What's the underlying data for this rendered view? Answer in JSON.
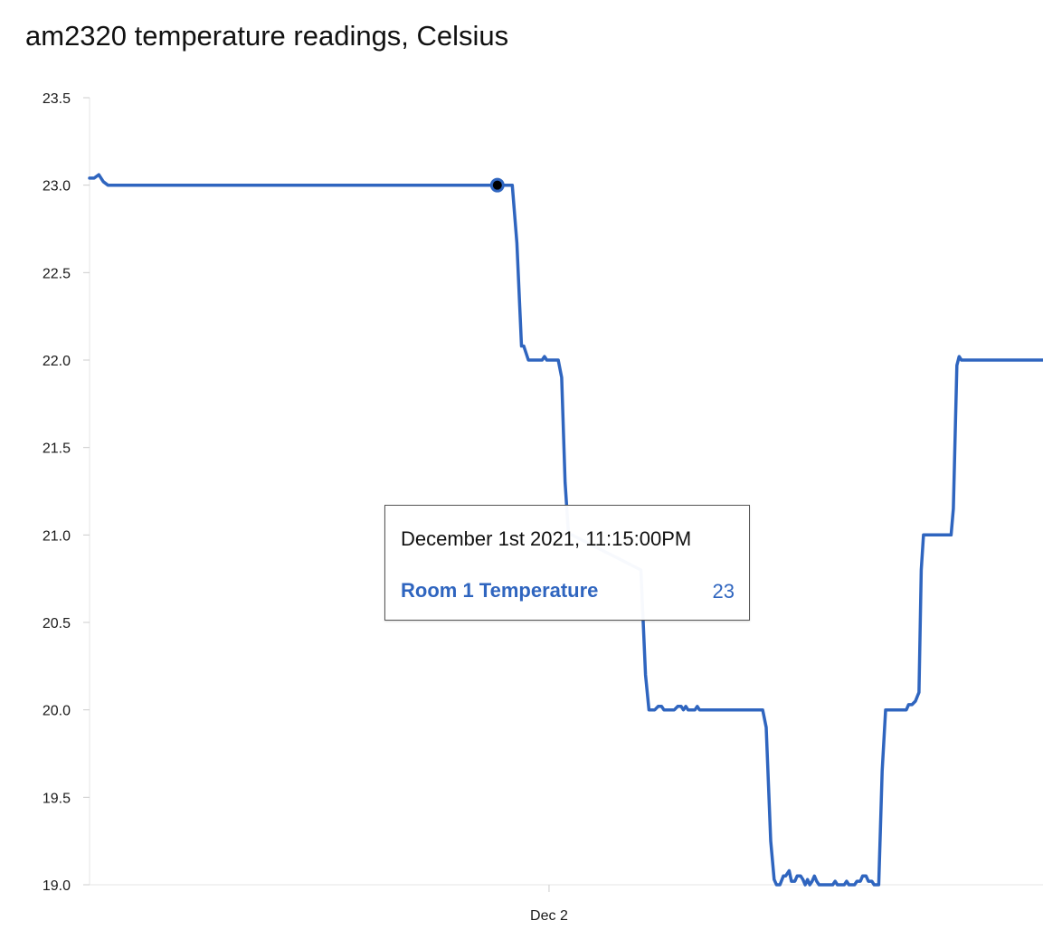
{
  "chart_data": {
    "type": "line",
    "title": "am2320 temperature readings, Celsius",
    "xlabel": "",
    "ylabel": "",
    "ylim": [
      19.0,
      23.5
    ],
    "yticks": [
      "23.5",
      "23.0",
      "22.5",
      "22.0",
      "21.5",
      "21.0",
      "20.5",
      "20.0",
      "19.5",
      "19.0"
    ],
    "xticks": [
      {
        "label": "Dec 2",
        "value": "2021-12-02T00:00:00"
      }
    ],
    "grid": "horizontal baseline only",
    "xlim": [
      "2021-12-01T17:20:00",
      "2021-12-02T07:10:00"
    ],
    "series": [
      {
        "name": "Room 1 Temperature",
        "color": "#2f65bf",
        "points": [
          [
            "2021-12-01T17:20:00",
            23.04
          ],
          [
            "2021-12-01T17:24:00",
            23.04
          ],
          [
            "2021-12-01T17:28:00",
            23.06
          ],
          [
            "2021-12-01T17:32:00",
            23.02
          ],
          [
            "2021-12-01T17:36:00",
            23.0
          ],
          [
            "2021-12-01T21:00:00",
            23.0
          ],
          [
            "2021-12-01T23:15:00",
            23.0
          ],
          [
            "2021-12-01T23:20:00",
            23.0
          ],
          [
            "2021-12-01T23:28:00",
            23.0
          ],
          [
            "2021-12-01T23:32:00",
            22.67
          ],
          [
            "2021-12-01T23:36:00",
            22.08
          ],
          [
            "2021-12-01T23:38:00",
            22.08
          ],
          [
            "2021-12-01T23:42:00",
            22.0
          ],
          [
            "2021-12-01T23:54:00",
            22.0
          ],
          [
            "2021-12-01T23:56:00",
            22.02
          ],
          [
            "2021-12-01T23:58:00",
            22.0
          ],
          [
            "2021-12-02T00:08:00",
            22.0
          ],
          [
            "2021-12-02T00:11:00",
            21.9
          ],
          [
            "2021-12-02T00:14:00",
            21.3
          ],
          [
            "2021-12-02T00:17:00",
            21.0
          ],
          [
            "2021-12-02T00:20:00",
            21.0
          ],
          [
            "2021-12-02T01:20:00",
            20.8
          ],
          [
            "2021-12-02T01:24:00",
            20.2
          ],
          [
            "2021-12-02T01:27:00",
            20.0
          ],
          [
            "2021-12-02T01:32:00",
            20.0
          ],
          [
            "2021-12-02T01:35:00",
            20.02
          ],
          [
            "2021-12-02T01:38:00",
            20.02
          ],
          [
            "2021-12-02T01:40:00",
            20.0
          ],
          [
            "2021-12-02T01:49:00",
            20.0
          ],
          [
            "2021-12-02T01:52:00",
            20.02
          ],
          [
            "2021-12-02T01:55:00",
            20.02
          ],
          [
            "2021-12-02T01:57:00",
            20.0
          ],
          [
            "2021-12-02T01:59:00",
            20.02
          ],
          [
            "2021-12-02T02:01:00",
            20.0
          ],
          [
            "2021-12-02T02:07:00",
            20.0
          ],
          [
            "2021-12-02T02:09:00",
            20.02
          ],
          [
            "2021-12-02T02:11:00",
            20.0
          ],
          [
            "2021-12-02T03:06:00",
            20.0
          ],
          [
            "2021-12-02T03:09:00",
            19.9
          ],
          [
            "2021-12-02T03:13:00",
            19.25
          ],
          [
            "2021-12-02T03:16:00",
            19.03
          ],
          [
            "2021-12-02T03:18:00",
            19.0
          ],
          [
            "2021-12-02T03:21:00",
            19.0
          ],
          [
            "2021-12-02T03:24:00",
            19.05
          ],
          [
            "2021-12-02T03:26:00",
            19.05
          ],
          [
            "2021-12-02T03:29:00",
            19.08
          ],
          [
            "2021-12-02T03:31:00",
            19.02
          ],
          [
            "2021-12-02T03:34:00",
            19.02
          ],
          [
            "2021-12-02T03:36:00",
            19.05
          ],
          [
            "2021-12-02T03:39:00",
            19.05
          ],
          [
            "2021-12-02T03:41:00",
            19.03
          ],
          [
            "2021-12-02T03:43:00",
            19.0
          ],
          [
            "2021-12-02T03:45:00",
            19.03
          ],
          [
            "2021-12-02T03:47:00",
            19.0
          ],
          [
            "2021-12-02T03:49:00",
            19.02
          ],
          [
            "2021-12-02T03:51:00",
            19.05
          ],
          [
            "2021-12-02T03:53:00",
            19.02
          ],
          [
            "2021-12-02T03:55:00",
            19.0
          ],
          [
            "2021-12-02T04:07:00",
            19.0
          ],
          [
            "2021-12-02T04:09:00",
            19.02
          ],
          [
            "2021-12-02T04:11:00",
            19.0
          ],
          [
            "2021-12-02T04:17:00",
            19.0
          ],
          [
            "2021-12-02T04:19:00",
            19.02
          ],
          [
            "2021-12-02T04:21:00",
            19.0
          ],
          [
            "2021-12-02T04:26:00",
            19.0
          ],
          [
            "2021-12-02T04:28:00",
            19.02
          ],
          [
            "2021-12-02T04:31:00",
            19.02
          ],
          [
            "2021-12-02T04:33:00",
            19.05
          ],
          [
            "2021-12-02T04:36:00",
            19.05
          ],
          [
            "2021-12-02T04:38:00",
            19.02
          ],
          [
            "2021-12-02T04:41:00",
            19.02
          ],
          [
            "2021-12-02T04:43:00",
            19.0
          ],
          [
            "2021-12-02T04:47:00",
            19.0
          ],
          [
            "2021-12-02T04:50:00",
            19.65
          ],
          [
            "2021-12-02T04:53:00",
            20.0
          ],
          [
            "2021-12-02T05:11:00",
            20.0
          ],
          [
            "2021-12-02T05:13:00",
            20.03
          ],
          [
            "2021-12-02T05:16:00",
            20.03
          ],
          [
            "2021-12-02T05:19:00",
            20.05
          ],
          [
            "2021-12-02T05:22:00",
            20.1
          ],
          [
            "2021-12-02T05:24:00",
            20.8
          ],
          [
            "2021-12-02T05:26:00",
            21.0
          ],
          [
            "2021-12-02T05:50:00",
            21.0
          ],
          [
            "2021-12-02T05:52:00",
            21.15
          ],
          [
            "2021-12-02T05:55:00",
            21.97
          ],
          [
            "2021-12-02T05:57:00",
            22.02
          ],
          [
            "2021-12-02T05:59:00",
            22.0
          ],
          [
            "2021-12-02T07:10:00",
            22.0
          ]
        ]
      }
    ],
    "highlight": {
      "x": "2021-12-01T23:15:00",
      "y": 23
    }
  },
  "tooltip": {
    "date": "December 1st 2021, 11:15:00PM",
    "series_name": "Room 1 Temperature",
    "value": "23"
  }
}
